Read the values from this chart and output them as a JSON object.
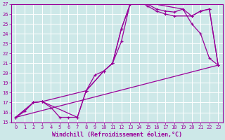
{
  "xlabel": "Windchill (Refroidissement éolien,°C)",
  "bg_color": "#cde8e8",
  "grid_color": "#aacccc",
  "line_color": "#990099",
  "xlim": [
    -0.5,
    23.5
  ],
  "ylim": [
    15,
    27
  ],
  "xticks": [
    0,
    1,
    2,
    3,
    4,
    5,
    6,
    7,
    8,
    9,
    10,
    11,
    12,
    13,
    14,
    15,
    16,
    17,
    18,
    19,
    20,
    21,
    22,
    23
  ],
  "yticks": [
    15,
    16,
    17,
    18,
    19,
    20,
    21,
    22,
    23,
    24,
    25,
    26,
    27
  ],
  "curve1_x": [
    0,
    1,
    2,
    3,
    4,
    5,
    6,
    7,
    8,
    9,
    10,
    11,
    12,
    13,
    14,
    15,
    16,
    17,
    18,
    19,
    20,
    21,
    22,
    23
  ],
  "curve1_y": [
    15.5,
    16.1,
    17.0,
    17.1,
    16.5,
    15.5,
    15.5,
    15.5,
    18.2,
    19.8,
    20.2,
    21.0,
    23.2,
    27.1,
    27.3,
    27.0,
    26.5,
    26.3,
    26.2,
    26.5,
    25.0,
    24.0,
    21.5,
    20.8
  ],
  "curve2_x": [
    0,
    2,
    3,
    8,
    10,
    11,
    12,
    13,
    14,
    15,
    16,
    17,
    18,
    20,
    21,
    22,
    23
  ],
  "curve2_y": [
    15.5,
    17.0,
    17.1,
    18.2,
    20.2,
    21.0,
    24.5,
    27.0,
    27.3,
    26.8,
    26.3,
    26.0,
    25.8,
    25.8,
    26.3,
    26.5,
    20.8
  ],
  "curve3_x": [
    0,
    23
  ],
  "curve3_y": [
    15.5,
    20.8
  ],
  "curve4_x": [
    0,
    2,
    3,
    7,
    8,
    10,
    11,
    12,
    13,
    14,
    19,
    20,
    21,
    22,
    23
  ],
  "curve4_y": [
    15.5,
    17.0,
    17.1,
    15.5,
    18.2,
    20.2,
    21.0,
    24.5,
    27.0,
    27.3,
    26.5,
    25.8,
    26.3,
    26.5,
    20.8
  ]
}
